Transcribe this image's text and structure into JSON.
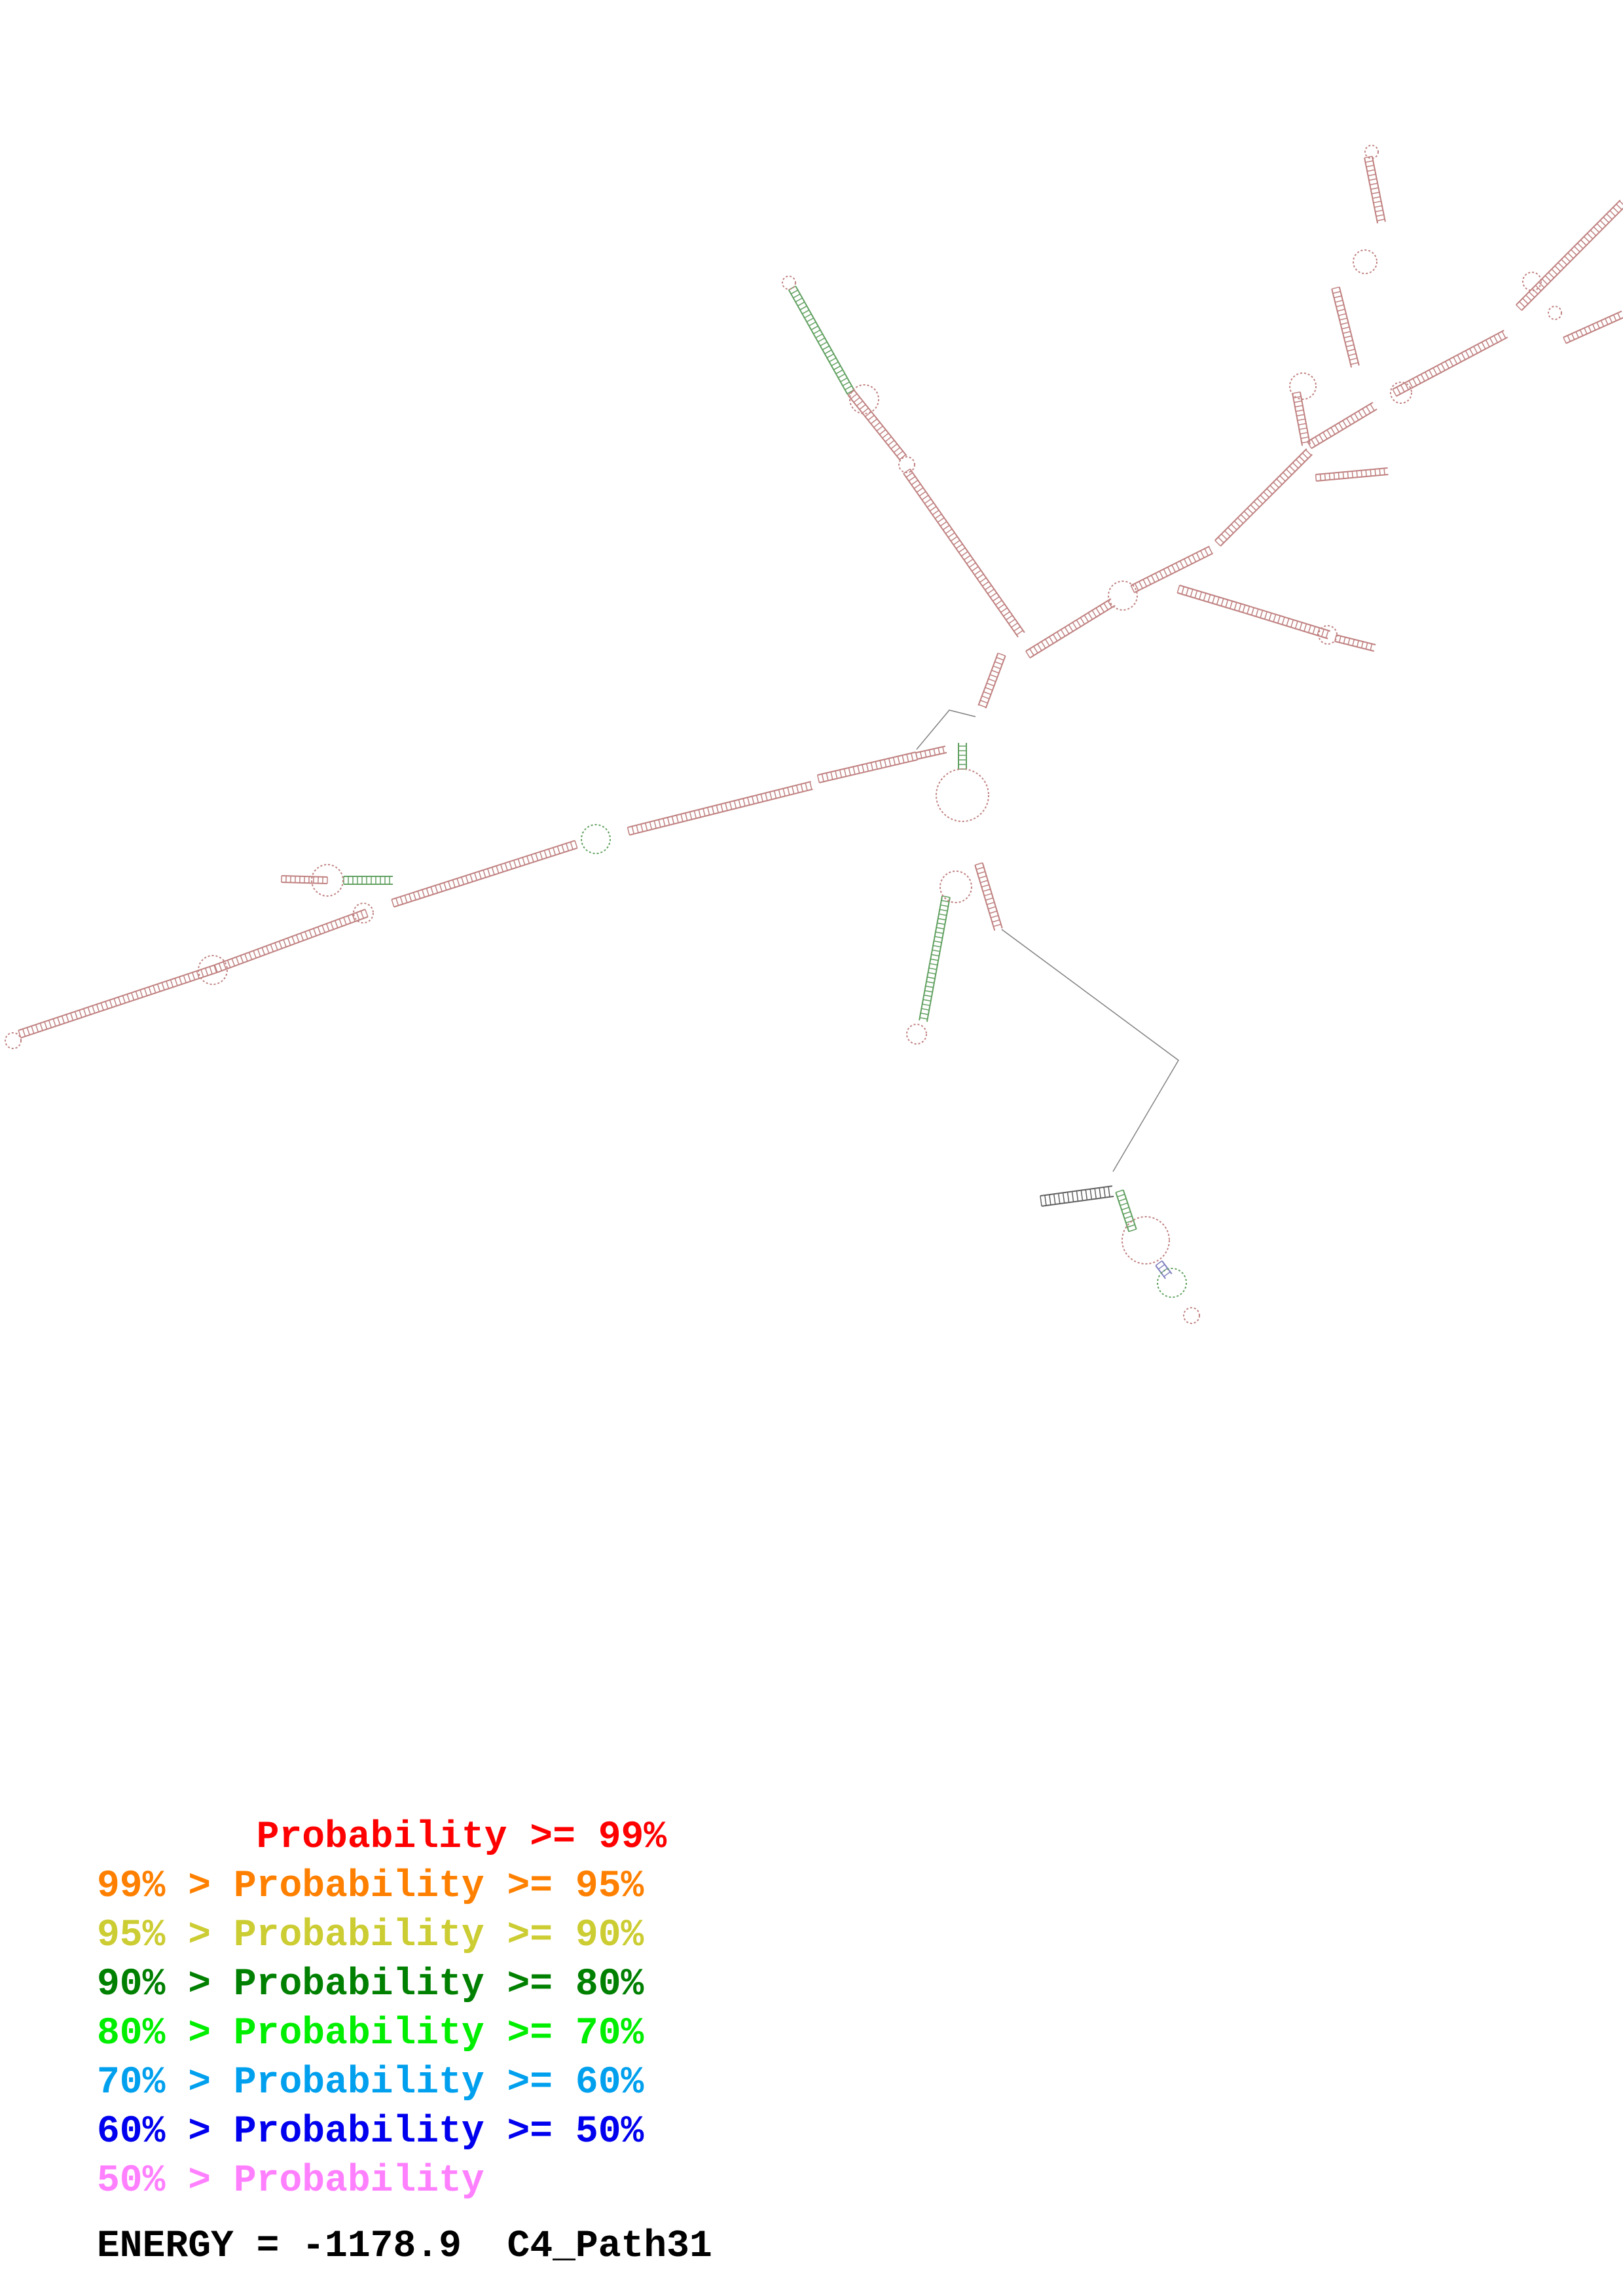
{
  "legend": {
    "rows": [
      {
        "text": "       Probability >= 99%",
        "color": "#ff0000"
      },
      {
        "text": "99% > Probability >= 95%",
        "color": "#ff8000"
      },
      {
        "text": "95% > Probability >= 90%",
        "color": "#cccc33"
      },
      {
        "text": "90% > Probability >= 80%",
        "color": "#008000"
      },
      {
        "text": "80% > Probability >= 70%",
        "color": "#00ee00"
      },
      {
        "text": "70% > Probability >= 60%",
        "color": "#00a0ee"
      },
      {
        "text": "60% > Probability >= 50%",
        "color": "#0000ee"
      },
      {
        "text": "50% > Probability",
        "color": "#ff80ff"
      }
    ]
  },
  "footer": {
    "energy_label": "ENERGY = -1178.9",
    "name": "C4_Path31"
  },
  "colors": {
    "stem_main": "#c08080",
    "stem_mid": "#60a060",
    "stem_low": "#8080c0",
    "backbone": "#808080"
  }
}
